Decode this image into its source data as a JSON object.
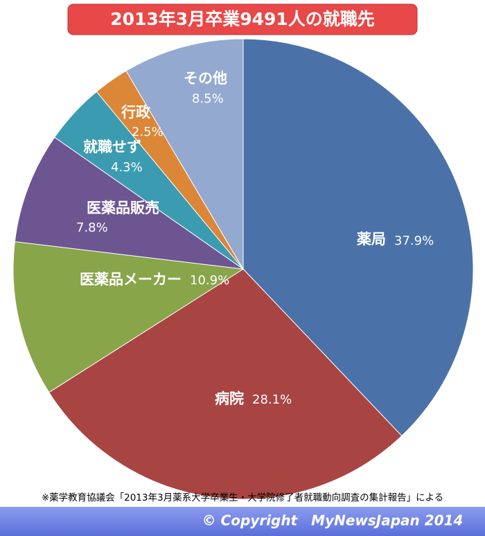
{
  "chart_data": {
    "type": "pie",
    "title": "2013年3月卒業9491人の就職先",
    "categories": [
      "薬局",
      "病院",
      "医薬品メーカー",
      "医薬品販売",
      "就職せず",
      "行政",
      "その他"
    ],
    "values": [
      37.9,
      28.1,
      10.9,
      7.8,
      4.3,
      2.5,
      8.5
    ],
    "value_labels": [
      "37.9%",
      "28.1%",
      "10.9%",
      "7.8%",
      "4.3%",
      "2.5%",
      "8.5%"
    ],
    "colors": [
      "#4a72a8",
      "#a84543",
      "#88a54a",
      "#6d5592",
      "#3b9bb0",
      "#dc8638",
      "#93a9cf"
    ],
    "source": "※薬学教育協議会「2013年3月薬系大学卒業生・大学院修了者就職動向調査の集計報告」による",
    "copyright": "© Copyright　MyNewsJapan 2014"
  }
}
